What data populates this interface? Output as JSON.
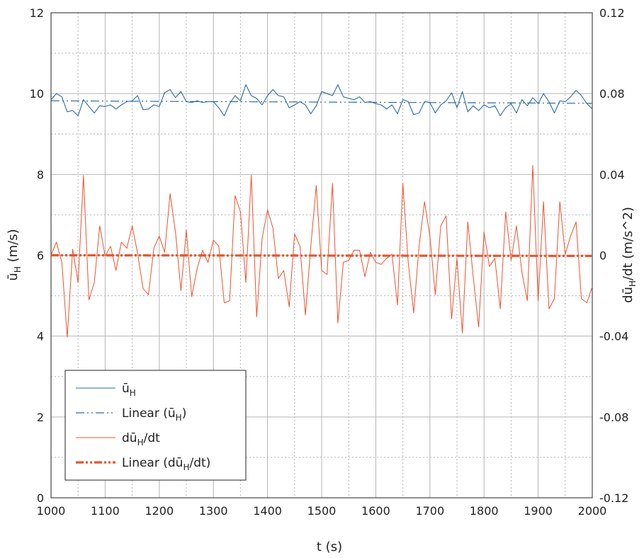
{
  "chart_data": {
    "type": "line",
    "xlabel": "t (s)",
    "ylabel_left": "ūH (m/s)",
    "ylabel_right": "dūH/dt (m/s^2)",
    "xlim": [
      1000,
      2000
    ],
    "ylim_left": [
      0,
      12
    ],
    "ylim_right": [
      -0.12,
      0.12
    ],
    "x_ticks": [
      1000,
      1100,
      1200,
      1300,
      1400,
      1500,
      1600,
      1700,
      1800,
      1900,
      2000
    ],
    "y_ticks_left": [
      "0",
      "2",
      "4",
      "6",
      "8",
      "10",
      "12"
    ],
    "y_ticks_right": [
      "-0.12",
      "-0.08",
      "-0.04",
      "0",
      "0.04",
      "0.08",
      "0.12"
    ],
    "grid": true,
    "grid_minor": true,
    "legend_placement": "lower-left",
    "legend": [
      {
        "main": "ū",
        "sub": "H",
        "tail": ""
      },
      {
        "main": "Linear (ū",
        "sub": "H",
        "tail": ")"
      },
      {
        "main": "dū",
        "sub": "H",
        "tail": "/dt"
      },
      {
        "main": "Linear (dū",
        "sub": "H",
        "tail": "/dt)"
      }
    ],
    "colors": {
      "u": "#2E6BA8",
      "dudt": "#F0502A",
      "dudt_trend": "#E8552D"
    },
    "series": [
      {
        "key": "u",
        "axis": "left",
        "x_start": 1000,
        "x_step": 10,
        "values": [
          9.85,
          10.0,
          9.92,
          9.55,
          9.58,
          9.45,
          9.85,
          9.68,
          9.52,
          9.7,
          9.68,
          9.72,
          9.62,
          9.72,
          9.8,
          9.82,
          9.95,
          9.6,
          9.62,
          9.72,
          9.68,
          10.02,
          10.1,
          9.9,
          10.05,
          9.8,
          9.78,
          9.82,
          9.78,
          9.8,
          9.8,
          9.65,
          9.45,
          9.75,
          9.95,
          9.82,
          10.22,
          9.95,
          9.88,
          9.72,
          9.95,
          10.1,
          9.95,
          9.92,
          9.65,
          9.72,
          9.8,
          9.72,
          9.5,
          9.7,
          10.05,
          10.0,
          9.95,
          10.22,
          9.92,
          9.88,
          9.85,
          9.92,
          9.78,
          9.8,
          9.75,
          9.72,
          9.62,
          9.72,
          9.5,
          9.85,
          9.8,
          9.48,
          9.52,
          9.8,
          9.78,
          9.52,
          9.72,
          9.82,
          10.02,
          9.65,
          10.05,
          9.55,
          9.7,
          9.58,
          9.72,
          9.65,
          9.7,
          9.45,
          9.65,
          9.75,
          9.52,
          9.85,
          9.7,
          9.9,
          9.75,
          10.0,
          9.8,
          9.52,
          9.82,
          9.8,
          9.92,
          10.08,
          9.95,
          9.75,
          9.62
        ]
      },
      {
        "key": "u_trend",
        "axis": "left",
        "x": [
          1000,
          2000
        ],
        "values": [
          9.82,
          9.76
        ]
      },
      {
        "key": "dudt",
        "axis": "right",
        "x_start": 1000,
        "x_step": 10,
        "values": [
          0.0,
          0.0065,
          -0.0035,
          -0.0405,
          0.003,
          -0.0135,
          0.0395,
          -0.022,
          -0.0135,
          0.0145,
          -0.0005,
          0.0045,
          -0.0075,
          0.0065,
          0.0035,
          0.0145,
          0.001,
          -0.0165,
          -0.0195,
          0.0035,
          0.0095,
          0.0015,
          0.0305,
          0.0115,
          -0.0175,
          0.0125,
          -0.0205,
          -0.0065,
          0.0025,
          -0.0035,
          0.0075,
          0.0045,
          -0.0235,
          -0.0225,
          0.0295,
          0.0215,
          -0.0135,
          0.0395,
          -0.0305,
          0.0085,
          0.0225,
          0.0135,
          -0.0115,
          -0.0075,
          -0.0255,
          0.0105,
          0.0045,
          -0.0295,
          0.0045,
          0.0345,
          -0.0075,
          -0.0095,
          0.0355,
          -0.0335,
          -0.0035,
          -0.0025,
          0.0025,
          0.0025,
          -0.0105,
          0.0015,
          -0.0035,
          -0.0045,
          -0.0015,
          0.0005,
          -0.0245,
          0.0355,
          -0.0035,
          -0.0285,
          0.0045,
          0.0265,
          0.0095,
          -0.0195,
          0.0145,
          0.0195,
          -0.0315,
          -0.0015,
          -0.0385,
          0.0165,
          -0.0105,
          -0.0355,
          0.0115,
          -0.0055,
          -0.0015,
          -0.0265,
          0.0215,
          -0.0025,
          0.0145,
          -0.0085,
          -0.0225,
          0.0445,
          -0.0225,
          0.0265,
          -0.0265,
          -0.0215,
          0.0265,
          0.0005,
          0.0095,
          0.0165,
          -0.0215,
          -0.0235,
          -0.0155
        ]
      },
      {
        "key": "dudt_trend",
        "axis": "right",
        "x": [
          1000,
          2000
        ],
        "values": [
          0.0,
          -0.0003
        ]
      }
    ]
  }
}
